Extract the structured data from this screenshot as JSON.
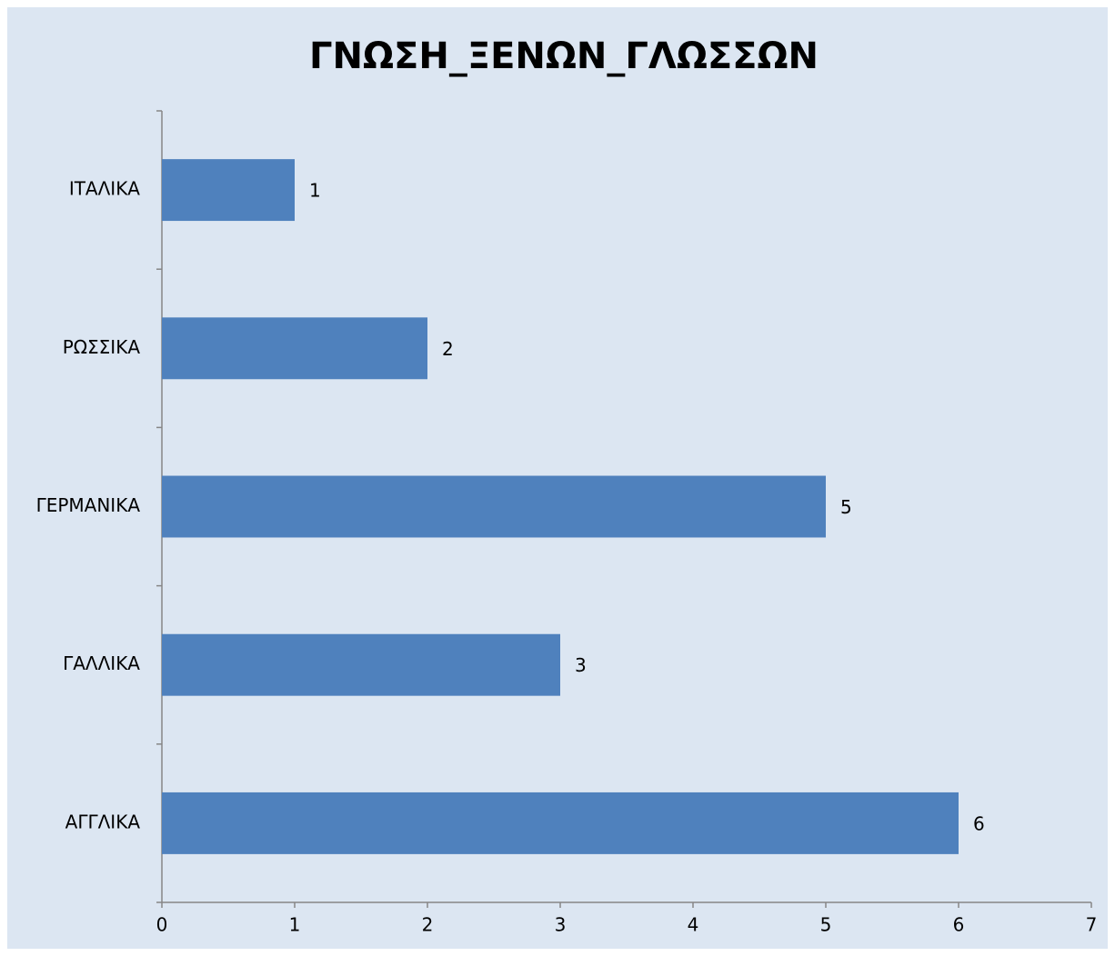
{
  "chart_data": {
    "type": "bar",
    "orientation": "horizontal",
    "title": "ΓΝΩΣΗ_ΞΕΝΩΝ_ΓΛΩΣΣΩΝ",
    "categories": [
      "ΑΓΓΛΙΚΑ",
      "ΓΑΛΛΙΚΑ",
      "ΓΕΡΜΑΝΙΚΑ",
      "ΡΩΣΣΙΚΑ",
      "ΙΤΑΛΙΚΑ"
    ],
    "values": [
      6,
      3,
      5,
      2,
      1
    ],
    "color": "#4f81bd",
    "xlim": [
      0,
      7
    ],
    "xticks": [
      0,
      1,
      2,
      3,
      4,
      5,
      6,
      7
    ],
    "grid": false,
    "data_labels": true
  }
}
